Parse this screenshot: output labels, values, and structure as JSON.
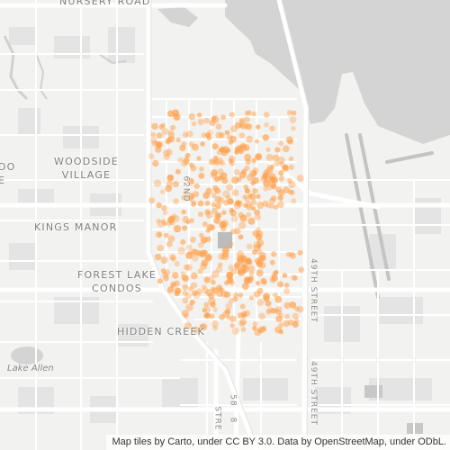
{
  "map": {
    "labels": {
      "nursery_road": "NURSERY ROAD",
      "woodside_village": [
        "WOODSIDE",
        "VILLAGE"
      ],
      "do_edge": [
        "DO",
        "E"
      ],
      "kings_manor": "KINGS MANOR",
      "forest_lake_condos": [
        "FOREST LAKE",
        "CONDOS"
      ],
      "hidden_creek": "HIDDEN CREEK",
      "lake_allen": "Lake Allen",
      "street_62nd": "62ND",
      "street_49th_upper": "49TH STREET",
      "street_49th_lower": "49TH STREET",
      "street_8_lower": "8",
      "street_58_lower": "58",
      "street_stre_lower": "STRE"
    },
    "attribution": "Map tiles by Carto, under CC BY 3.0. Data by OpenStreetMap, under ODbL.",
    "colors": {
      "land": "#f2f2f0",
      "water": "#d4d4d4",
      "road": "#ffffff",
      "block": "#e6e6e6",
      "points": "#ffa04a"
    },
    "points": {
      "description": "Dense cluster of translucent orange point markers over the central neighborhood"
    }
  }
}
